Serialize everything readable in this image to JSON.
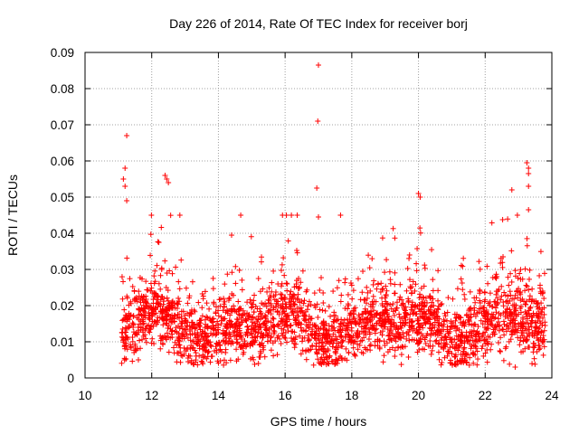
{
  "chart_data": {
    "type": "scatter",
    "title": "Day 226 of 2014, Rate Of TEC Index for receiver borj",
    "xlabel": "GPS time / hours",
    "ylabel": "ROTI / TECUs",
    "xlim": [
      10,
      24
    ],
    "ylim": [
      0,
      0.09
    ],
    "xticks": [
      10,
      12,
      14,
      16,
      18,
      20,
      22,
      24
    ],
    "yticks": [
      0,
      0.01,
      0.02,
      0.03,
      0.04,
      0.05,
      0.06,
      0.07,
      0.08,
      0.09
    ],
    "xtick_labels": [
      "10",
      "12",
      "14",
      "16",
      "18",
      "20",
      "22",
      "24"
    ],
    "ytick_labels": [
      "0",
      "0.01",
      "0.02",
      "0.03",
      "0.04",
      "0.05",
      "0.06",
      "0.07",
      "0.08",
      "0.09"
    ],
    "grid": true,
    "marker": "+",
    "color": "#ff0000",
    "x_data_range": [
      11.1,
      23.8
    ],
    "typical_band": [
      0.005,
      0.025
    ],
    "series": [
      {
        "name": "ROTI",
        "notable_points": [
          {
            "x": 11.25,
            "y": 0.067
          },
          {
            "x": 11.2,
            "y": 0.058
          },
          {
            "x": 11.15,
            "y": 0.055
          },
          {
            "x": 11.2,
            "y": 0.053
          },
          {
            "x": 11.25,
            "y": 0.049
          },
          {
            "x": 12.4,
            "y": 0.056
          },
          {
            "x": 12.45,
            "y": 0.055
          },
          {
            "x": 12.5,
            "y": 0.054
          },
          {
            "x": 17.0,
            "y": 0.0865
          },
          {
            "x": 16.98,
            "y": 0.071
          },
          {
            "x": 16.95,
            "y": 0.0525
          },
          {
            "x": 17.0,
            "y": 0.0445
          },
          {
            "x": 20.0,
            "y": 0.051
          },
          {
            "x": 20.05,
            "y": 0.05
          },
          {
            "x": 22.8,
            "y": 0.052
          },
          {
            "x": 23.25,
            "y": 0.0595
          },
          {
            "x": 23.3,
            "y": 0.058
          },
          {
            "x": 23.3,
            "y": 0.0565
          },
          {
            "x": 23.3,
            "y": 0.053
          },
          {
            "x": 23.3,
            "y": 0.0465
          },
          {
            "x": 11.6,
            "y": 0.005
          },
          {
            "x": 15.2,
            "y": 0.004
          },
          {
            "x": 22.9,
            "y": 0.003
          }
        ]
      }
    ]
  }
}
